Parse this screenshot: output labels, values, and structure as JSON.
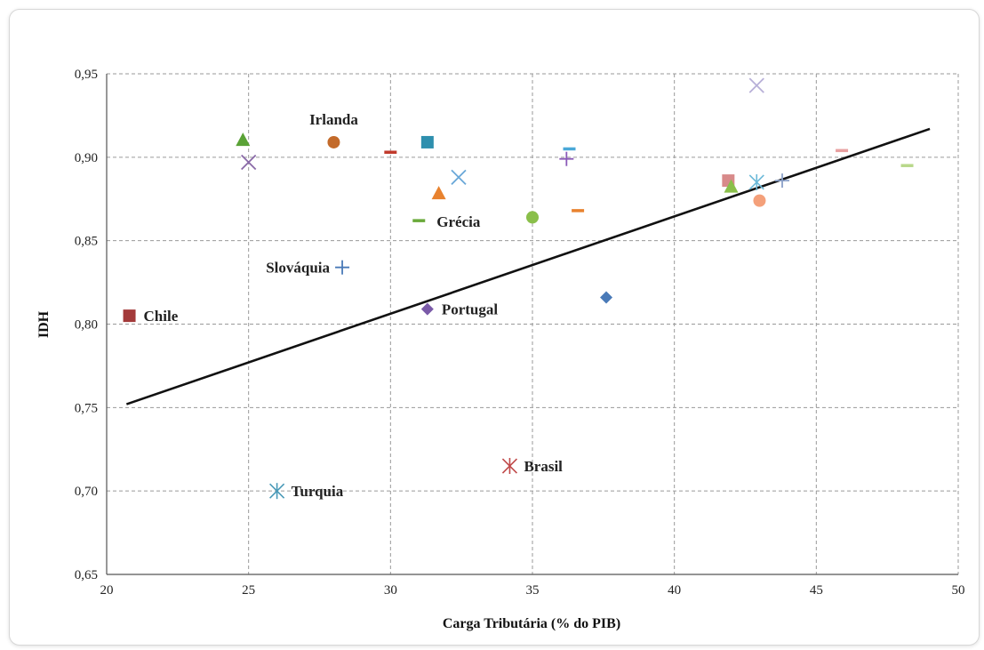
{
  "chart_data": {
    "type": "scatter",
    "xlabel": "Carga Tributária (% do PIB)",
    "ylabel": "IDH",
    "xlim": [
      20,
      50
    ],
    "ylim": [
      0.65,
      0.95
    ],
    "x_ticks": [
      "20",
      "25",
      "30",
      "35",
      "40",
      "45",
      "50"
    ],
    "y_ticks": [
      "0,65",
      "0,70",
      "0,75",
      "0,80",
      "0,85",
      "0,90",
      "0,95"
    ],
    "grid": true,
    "trendline": {
      "x": [
        20.7,
        49
      ],
      "y": [
        0.752,
        0.917
      ],
      "color": "#111111"
    },
    "points": [
      {
        "x": 24.8,
        "y": 0.91,
        "marker": "triangle",
        "color": "#5aa236",
        "label": ""
      },
      {
        "x": 25.0,
        "y": 0.897,
        "marker": "x",
        "color": "#8a6aa8",
        "label": ""
      },
      {
        "x": 28.0,
        "y": 0.909,
        "marker": "circle",
        "color": "#c36a2a",
        "label": "Irlanda"
      },
      {
        "x": 30.0,
        "y": 0.903,
        "marker": "dash",
        "color": "#c0392b",
        "label": ""
      },
      {
        "x": 31.3,
        "y": 0.909,
        "marker": "square",
        "color": "#2e8fae",
        "label": ""
      },
      {
        "x": 31.7,
        "y": 0.878,
        "marker": "triangle",
        "color": "#e8822e",
        "label": ""
      },
      {
        "x": 32.4,
        "y": 0.888,
        "marker": "x",
        "color": "#6aa8d8",
        "label": ""
      },
      {
        "x": 36.3,
        "y": 0.905,
        "marker": "dash",
        "color": "#4aa8d8",
        "label": ""
      },
      {
        "x": 36.2,
        "y": 0.899,
        "marker": "plus",
        "color": "#8a5ab8",
        "label": ""
      },
      {
        "x": 36.6,
        "y": 0.868,
        "marker": "dash",
        "color": "#e8822e",
        "label": ""
      },
      {
        "x": 35.0,
        "y": 0.864,
        "marker": "circle",
        "color": "#8abf4a",
        "label": ""
      },
      {
        "x": 31.0,
        "y": 0.862,
        "marker": "dash",
        "color": "#6aaa3a",
        "label": "Grécia"
      },
      {
        "x": 28.3,
        "y": 0.834,
        "marker": "plus",
        "color": "#4a7ab8",
        "label": "Slováquia"
      },
      {
        "x": 20.8,
        "y": 0.805,
        "marker": "square",
        "color": "#a33a3a",
        "label": "Chile"
      },
      {
        "x": 31.3,
        "y": 0.809,
        "marker": "diamond",
        "color": "#7a5aa8",
        "label": "Portugal"
      },
      {
        "x": 37.6,
        "y": 0.816,
        "marker": "diamond",
        "color": "#4a7ab8",
        "label": ""
      },
      {
        "x": 42.9,
        "y": 0.943,
        "marker": "x",
        "color": "#b8b0d8",
        "label": ""
      },
      {
        "x": 41.9,
        "y": 0.886,
        "marker": "square",
        "color": "#d88a8a",
        "label": ""
      },
      {
        "x": 42.9,
        "y": 0.885,
        "marker": "star",
        "color": "#6ab8d8",
        "label": ""
      },
      {
        "x": 42.0,
        "y": 0.882,
        "marker": "triangle",
        "color": "#8abf4a",
        "label": ""
      },
      {
        "x": 43.0,
        "y": 0.874,
        "marker": "circle",
        "color": "#f4a07a",
        "label": ""
      },
      {
        "x": 43.8,
        "y": 0.886,
        "marker": "plus",
        "color": "#8aa0c8",
        "label": ""
      },
      {
        "x": 45.9,
        "y": 0.904,
        "marker": "dash",
        "color": "#e8a0a0",
        "label": ""
      },
      {
        "x": 48.2,
        "y": 0.895,
        "marker": "dash",
        "color": "#b8d88a",
        "label": ""
      },
      {
        "x": 34.2,
        "y": 0.715,
        "marker": "star",
        "color": "#c04a4a",
        "label": "Brasil"
      },
      {
        "x": 26.0,
        "y": 0.7,
        "marker": "star",
        "color": "#4a9ab8",
        "label": "Turquia"
      }
    ]
  }
}
